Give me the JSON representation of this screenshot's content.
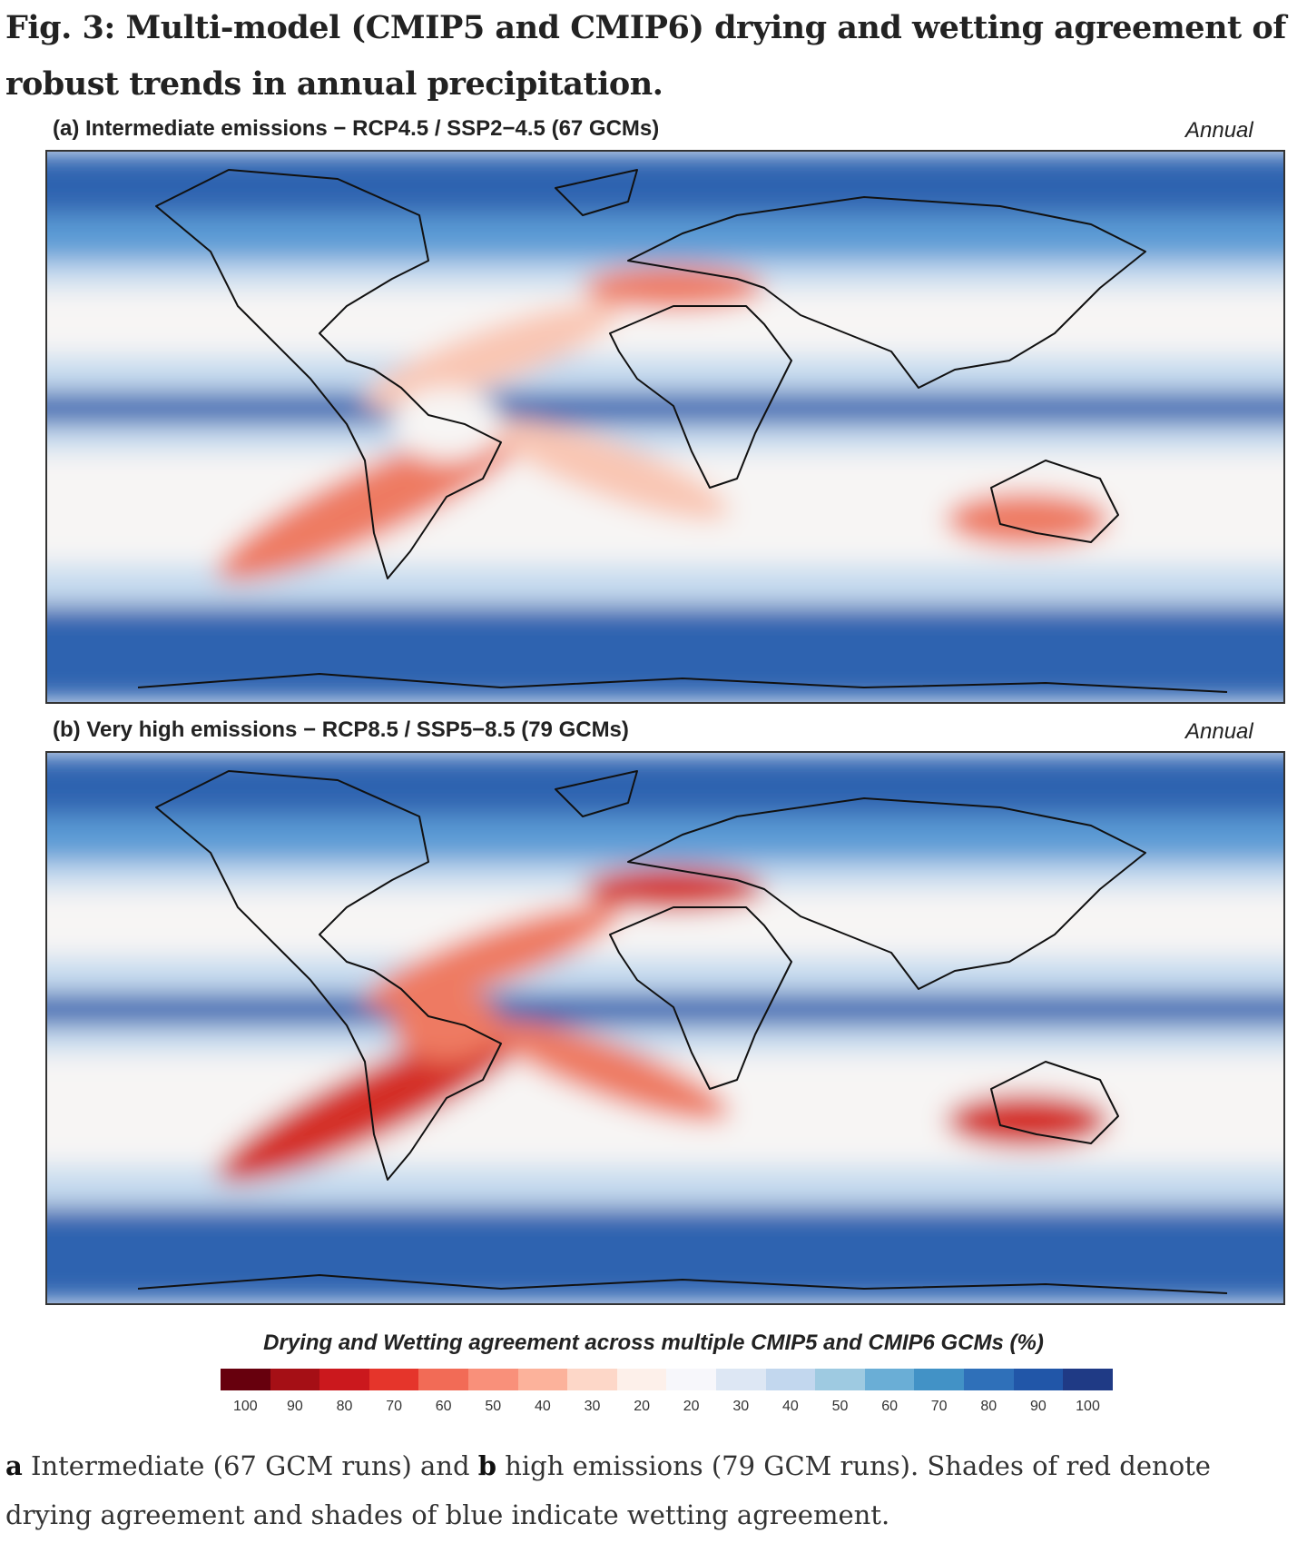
{
  "figure": {
    "title": "Fig. 3: Multi-model (CMIP5 and CMIP6) drying and wetting agreement of robust trends in annual precipitation."
  },
  "panels": [
    {
      "label": "(a) Intermediate emissions − RCP4.5 / SSP2−4.5 (67 GCMs)",
      "season": "Annual"
    },
    {
      "label": "(b) Very high emissions − RCP8.5 / SSP5−8.5 (79 GCMs)",
      "season": "Annual"
    }
  ],
  "legend": {
    "title": "Drying and Wetting agreement across multiple CMIP5 and CMIP6 GCMs (%)",
    "ticks": [
      "100",
      "90",
      "80",
      "70",
      "60",
      "50",
      "40",
      "30",
      "20",
      "20",
      "30",
      "40",
      "50",
      "60",
      "70",
      "80",
      "90",
      "100"
    ],
    "colors": [
      "#67000d",
      "#a50f15",
      "#cb181d",
      "#e5352b",
      "#f26b56",
      "#f9907a",
      "#fcb29b",
      "#fdd7c8",
      "#fdf0ea",
      "#f7f7fb",
      "#dde7f4",
      "#c2d7ee",
      "#9ecae1",
      "#6aaed6",
      "#4292c6",
      "#2f70b9",
      "#2156a8",
      "#1f3a85"
    ]
  },
  "caption": {
    "a_bold": "a",
    "a_text": " Intermediate (67 GCM runs) and ",
    "b_bold": "b",
    "b_text": " high emissions (79 GCM runs). Shades of red denote drying agreement and shades of blue indicate wetting agreement."
  },
  "colors": {
    "wet_strong": "#2f63b0",
    "wet_mid": "#5b9bd5",
    "wet_light": "#c6dbef",
    "neutral": "#f7f5f4",
    "dry_light": "#f9c6b3",
    "dry_mid": "#ee7a62",
    "dry_strong": "#d42d27"
  }
}
